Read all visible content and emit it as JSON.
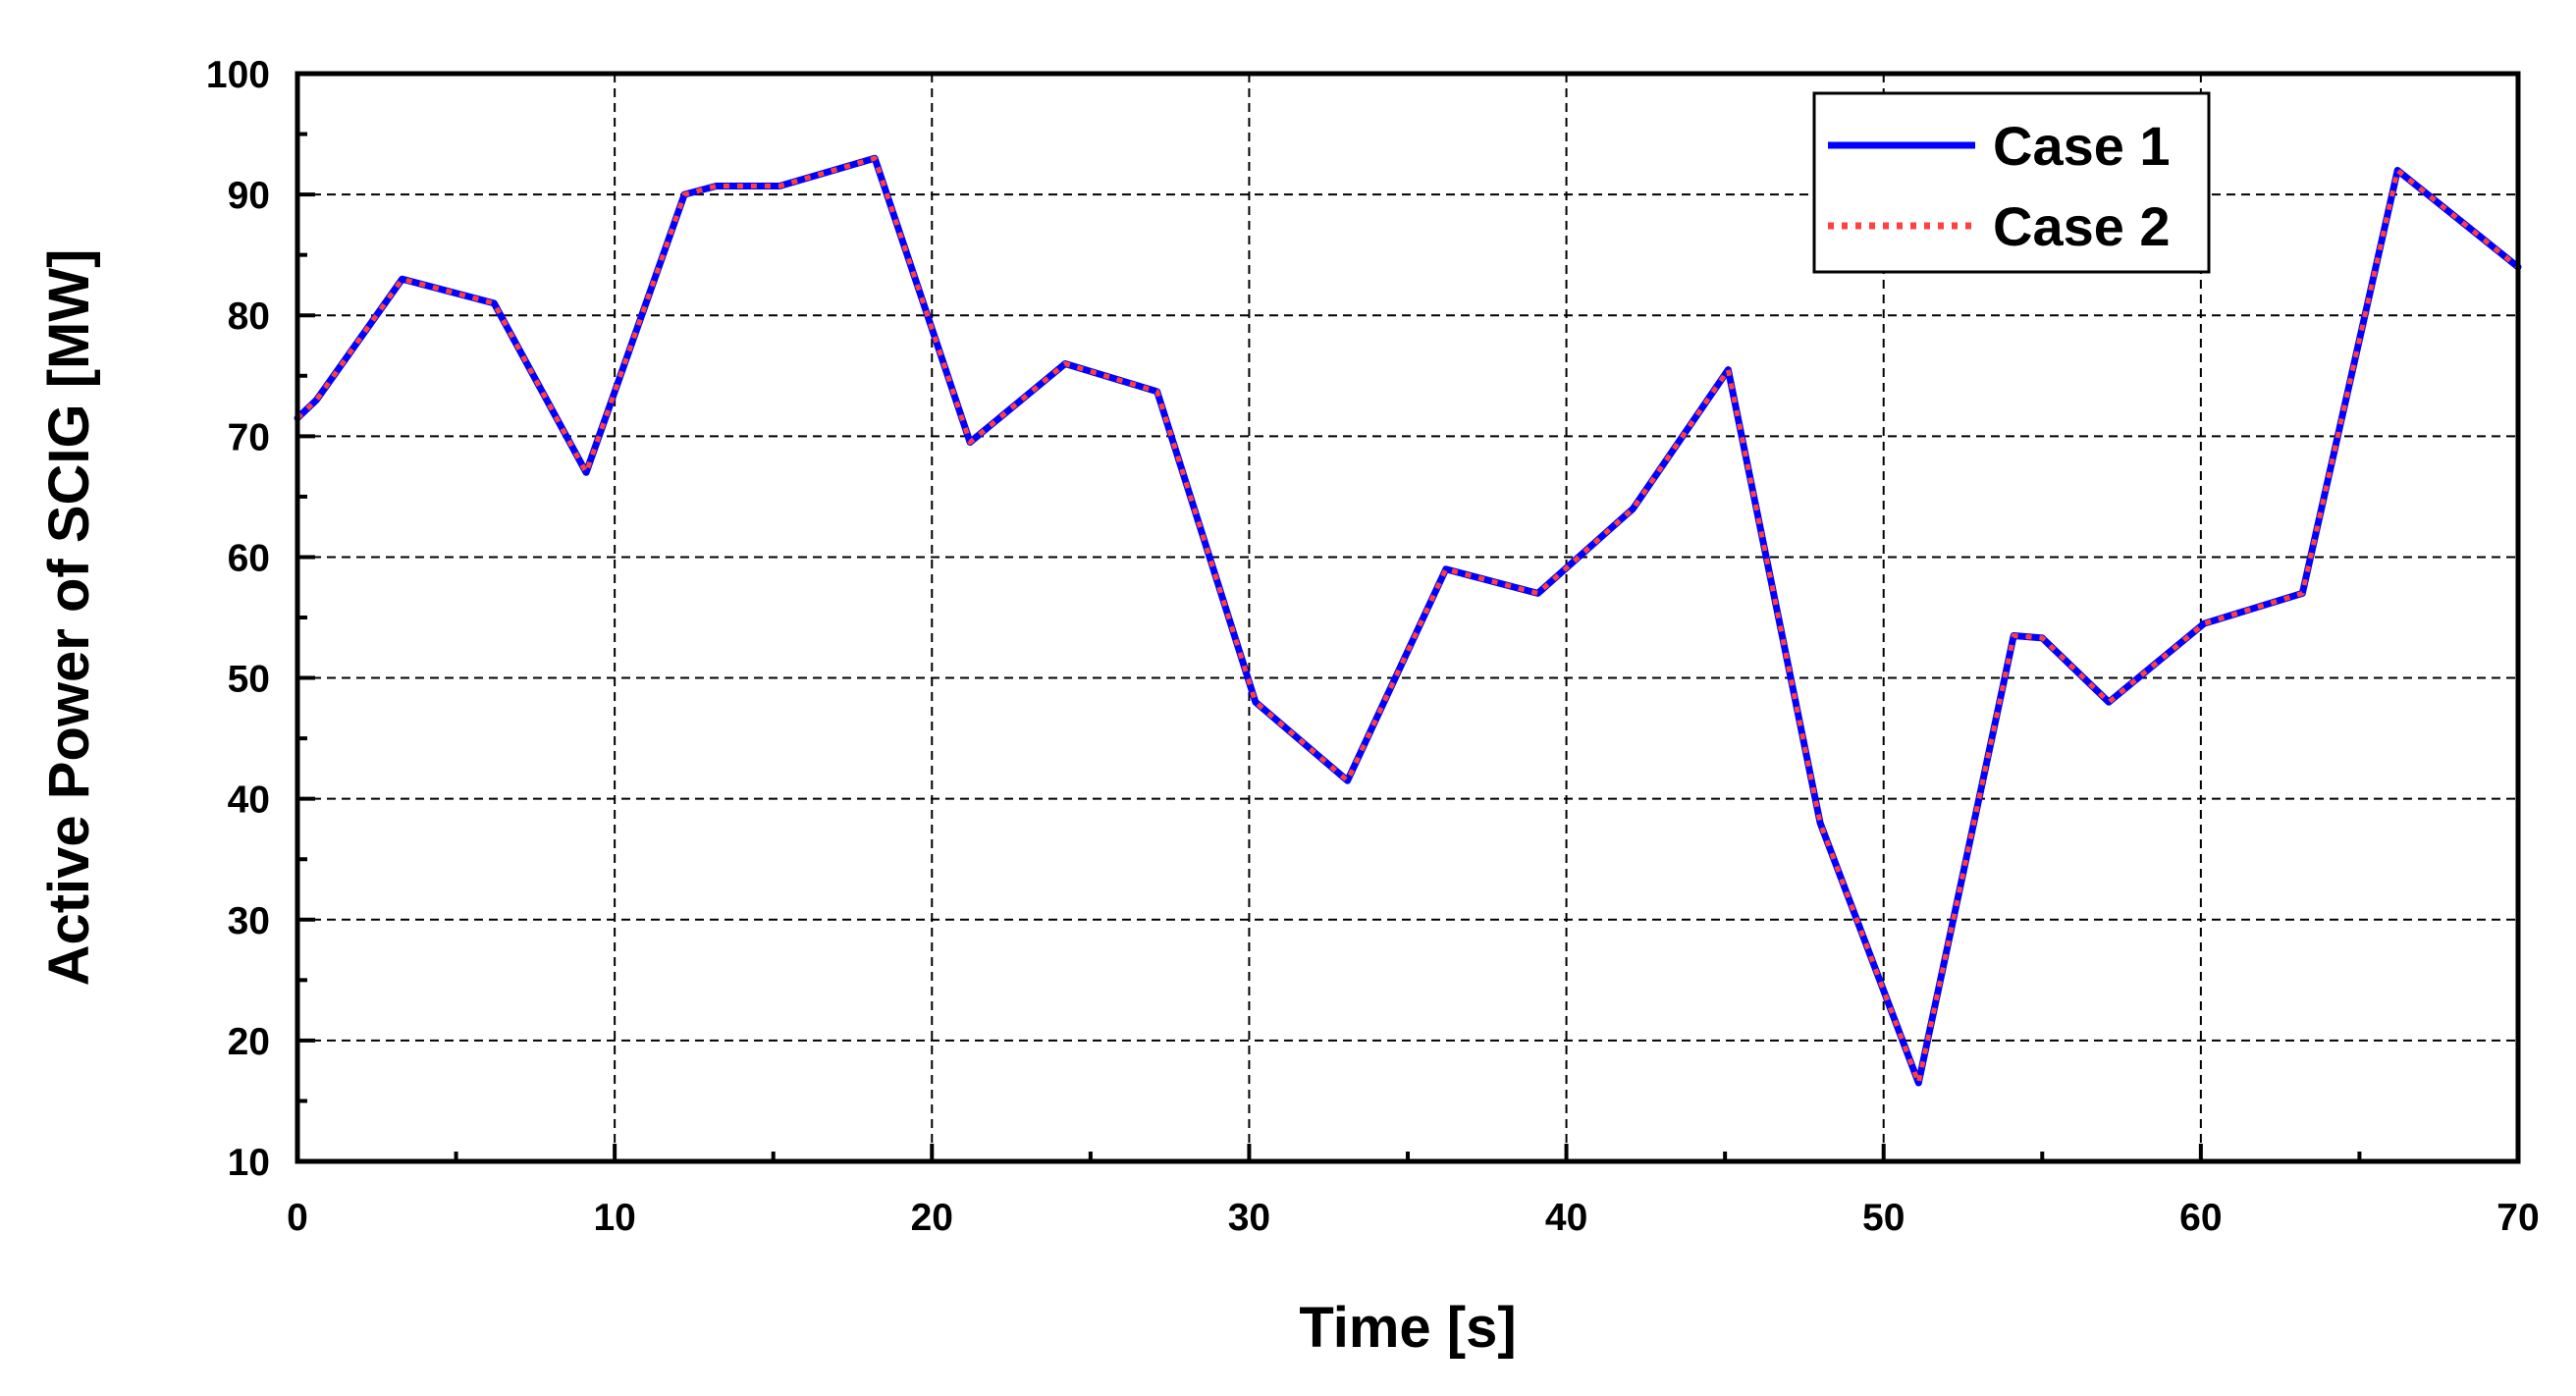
{
  "chart_data": {
    "type": "line",
    "title": "",
    "xlabel": "Time [s]",
    "ylabel": "Active Power of SCIG [MW]",
    "xlim": [
      0,
      70
    ],
    "ylim": [
      10,
      100
    ],
    "xticks": [
      "0",
      "10",
      "20",
      "30",
      "40",
      "50",
      "60",
      "70"
    ],
    "yticks": [
      "10",
      "20",
      "30",
      "40",
      "50",
      "60",
      "70",
      "80",
      "90",
      "100"
    ],
    "grid": true,
    "legend_position": "top-right",
    "series": [
      {
        "name": "Case 1",
        "color": "#0000ff",
        "style": "solid",
        "x": [
          0,
          0.6,
          3.3,
          6.2,
          9.1,
          12.2,
          13.2,
          15.2,
          18.2,
          21.2,
          24.2,
          27.1,
          30.2,
          33.1,
          36.2,
          39.1,
          42.1,
          45.1,
          48.0,
          51.1,
          54.1,
          55.0,
          57.1,
          60.1,
          63.2,
          66.2,
          70.0
        ],
        "values": [
          71.5,
          73,
          83,
          81,
          67,
          90,
          90.7,
          90.7,
          93,
          69.5,
          76,
          73.7,
          48,
          41.5,
          59,
          57,
          64,
          75.5,
          38,
          16.5,
          53.5,
          53.3,
          48,
          54.5,
          57,
          92,
          84
        ]
      },
      {
        "name": "Case 2",
        "color": "#ff4040",
        "style": "dotted",
        "x": [
          0,
          0.6,
          3.3,
          6.2,
          9.1,
          12.2,
          13.2,
          15.2,
          18.2,
          21.2,
          24.2,
          27.1,
          30.2,
          33.1,
          36.2,
          39.1,
          42.1,
          45.1,
          48.0,
          51.1,
          54.1,
          55.0,
          57.1,
          60.1,
          63.2,
          66.2,
          70.0
        ],
        "values": [
          71.5,
          73,
          83,
          81,
          67,
          90,
          90.7,
          90.7,
          93,
          69.5,
          76,
          73.7,
          48,
          41.5,
          59,
          57,
          64,
          75.5,
          38,
          16.5,
          53.5,
          53.3,
          48,
          54.5,
          57,
          92,
          84
        ]
      }
    ]
  }
}
